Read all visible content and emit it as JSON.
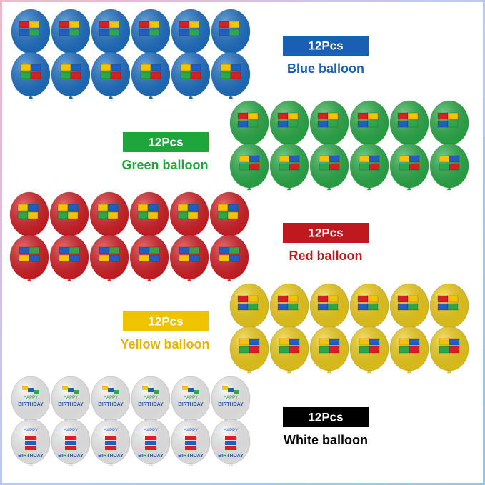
{
  "groups": [
    {
      "count_label": "12Pcs",
      "name": "Blue balloon",
      "badge_color": "#1a5fb4",
      "balloon_color": "#1f73c9"
    },
    {
      "count_label": "12Pcs",
      "name": "Green balloon",
      "badge_color": "#1ea53c",
      "balloon_color": "#2bb04a"
    },
    {
      "count_label": "12Pcs",
      "name": "Red balloon",
      "badge_color": "#c0181f",
      "balloon_color": "#d81f26"
    },
    {
      "count_label": "12Pcs",
      "name": "Yellow balloon",
      "badge_color": "#f0c300",
      "balloon_color": "#f5d21a"
    },
    {
      "count_label": "12Pcs",
      "name": "White balloon",
      "badge_color": "#000000",
      "balloon_color": "#f6f6f6"
    }
  ],
  "balloon_print": [
    "HAPPY",
    "BIRTHDAY"
  ]
}
